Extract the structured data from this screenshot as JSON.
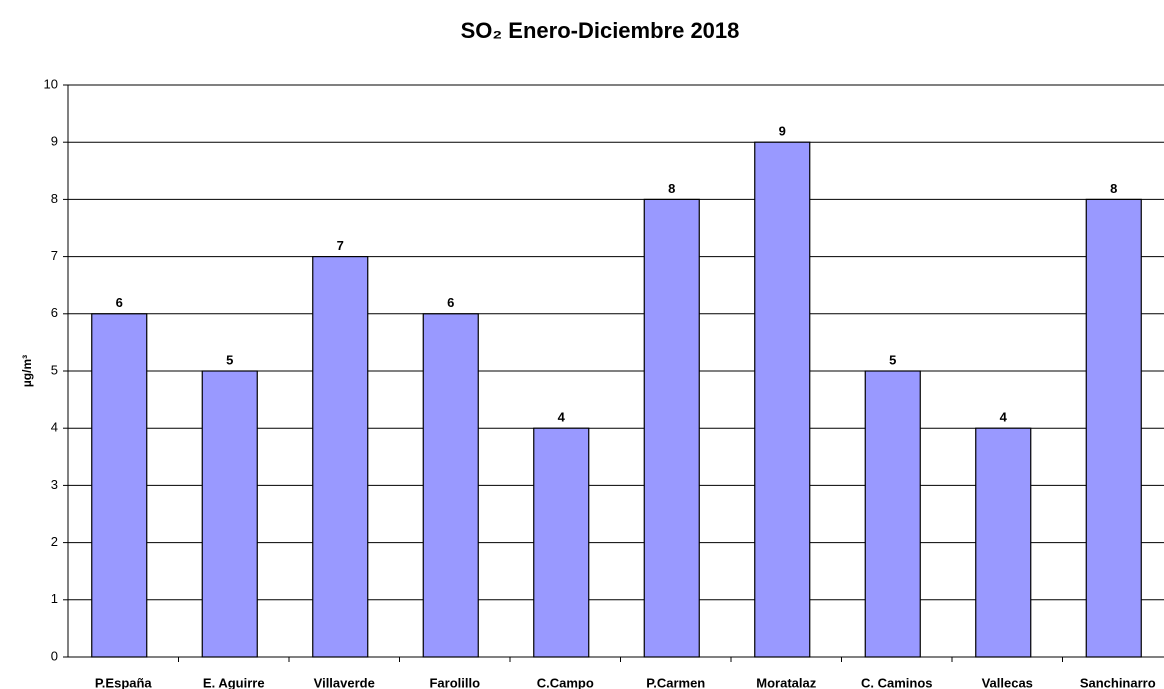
{
  "chart_data": {
    "type": "bar",
    "title": "SO₂ Enero-Diciembre 2018",
    "y_label": "µg/m³",
    "categories": [
      "P.España",
      "E. Aguirre",
      "Villaverde",
      "Farolillo",
      "C.Campo",
      "P.Carmen",
      "Moratalaz",
      "C. Caminos",
      "Vallecas",
      "Sanchinarro"
    ],
    "values": [
      6,
      5,
      7,
      6,
      4,
      8,
      9,
      5,
      4,
      8
    ],
    "color": "#9999ff",
    "ylim": [
      0,
      10
    ],
    "yticks": [
      0,
      1,
      2,
      3,
      4,
      5,
      6,
      7,
      8,
      9,
      10
    ],
    "grid": true
  }
}
